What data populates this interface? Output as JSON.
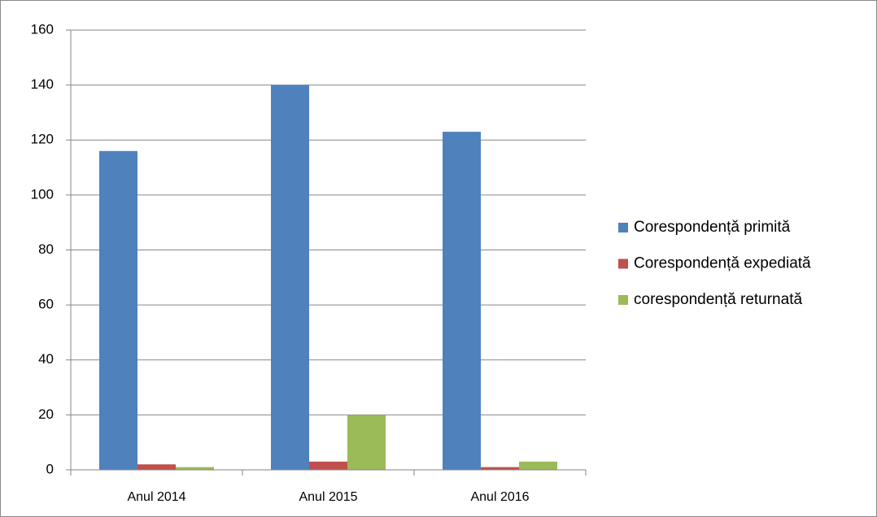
{
  "chart_data": {
    "type": "bar",
    "categories": [
      "Anul 2014",
      "Anul 2015",
      "Anul 2016"
    ],
    "series": [
      {
        "name": "Corespondență primită",
        "color": "#4f81bd",
        "values": [
          116,
          140,
          123
        ]
      },
      {
        "name": "Corespondență expediată",
        "color": "#c0504d",
        "values": [
          2,
          3,
          1
        ]
      },
      {
        "name": "corespondență returnată",
        "color": "#9bbb59",
        "values": [
          1,
          20,
          3
        ]
      }
    ],
    "ylim": [
      0,
      160
    ],
    "yticks": [
      0,
      20,
      40,
      60,
      80,
      100,
      120,
      140,
      160
    ],
    "grid": true,
    "legend": "right"
  }
}
